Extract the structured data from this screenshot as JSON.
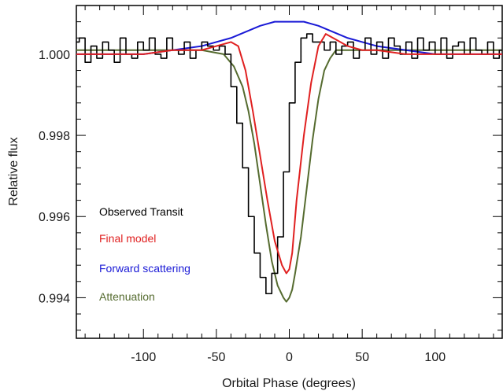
{
  "chart_data": {
    "type": "line",
    "title": "",
    "xlabel": "Orbital Phase (degrees)",
    "ylabel": "Relative flux",
    "xlim": [
      -146,
      146
    ],
    "ylim": [
      0.993,
      1.0012
    ],
    "x_ticks": [
      -100,
      -50,
      0,
      50,
      100
    ],
    "x_tick_labels": [
      "-100",
      "-50",
      "0",
      "50",
      "100"
    ],
    "y_ticks": [
      0.994,
      0.996,
      0.998,
      1.0
    ],
    "y_tick_labels": [
      "0.994",
      "0.996",
      "0.998",
      "1.000"
    ],
    "grid": false,
    "legend_position": "lower-left",
    "series": [
      {
        "name": "Observed Transit",
        "color": "#000000",
        "style": "histogram",
        "x": [
          -146,
          -142,
          -138,
          -134,
          -130,
          -126,
          -122,
          -118,
          -114,
          -110,
          -106,
          -102,
          -98,
          -94,
          -90,
          -86,
          -82,
          -78,
          -74,
          -70,
          -66,
          -62,
          -58,
          -54,
          -50,
          -46,
          -42,
          -38,
          -34,
          -30,
          -26,
          -22,
          -18,
          -14,
          -10,
          -6,
          -2,
          2,
          6,
          10,
          14,
          18,
          22,
          26,
          30,
          34,
          38,
          42,
          46,
          50,
          54,
          58,
          62,
          66,
          70,
          74,
          78,
          82,
          86,
          90,
          94,
          98,
          102,
          106,
          110,
          114,
          118,
          122,
          126,
          130,
          134,
          138,
          142,
          146
        ],
        "y": [
          1.0003,
          1.0004,
          0.9998,
          1.0002,
          0.9999,
          1.0003,
          1.0001,
          0.9998,
          1.0004,
          1.0,
          0.9999,
          1.0003,
          1.0001,
          1.0004,
          1.0,
          0.9999,
          1.0004,
          1.0001,
          1.0,
          1.0003,
          0.9999,
          1.0001,
          1.0003,
          1.0002,
          1.0001,
          1.0002,
          1.0,
          0.9992,
          0.9983,
          0.9972,
          0.996,
          0.9951,
          0.9945,
          0.9941,
          0.9946,
          0.9955,
          0.9971,
          0.9988,
          0.9998,
          1.0004,
          1.0005,
          1.0003,
          1.0003,
          1.0001,
          1.0003,
          1.0,
          1.0002,
          1.0003,
          0.9999,
          1.0001,
          1.0004,
          1.0,
          1.0003,
          0.9999,
          1.0004,
          1.0002,
          1.0,
          1.0003,
          0.9999,
          1.0004,
          1.0001,
          1.0003,
          1.0,
          1.0004,
          0.9999,
          1.0002,
          1.0003,
          1.0,
          1.0004,
          1.0001,
          1.0,
          1.0003,
          0.9999,
          1.0001
        ]
      },
      {
        "name": "Final model",
        "color": "#e02020",
        "x": [
          -146,
          -100,
          -80,
          -60,
          -50,
          -40,
          -35,
          -30,
          -25,
          -20,
          -15,
          -10,
          -5,
          -2,
          0,
          2,
          5,
          10,
          15,
          20,
          25,
          30,
          35,
          40,
          50,
          60,
          80,
          100,
          146
        ],
        "y": [
          1.0,
          1.0,
          1.0001,
          1.0001,
          1.0002,
          1.0003,
          1.0002,
          0.9996,
          0.9986,
          0.9975,
          0.9964,
          0.9954,
          0.9948,
          0.9946,
          0.9947,
          0.9951,
          0.9964,
          0.998,
          0.9993,
          1.0002,
          1.0005,
          1.0004,
          1.0003,
          1.0002,
          1.0001,
          1.0001,
          1.0,
          1.0,
          1.0
        ]
      },
      {
        "name": "Forward scattering",
        "color": "#1a1ad6",
        "x": [
          -146,
          -120,
          -100,
          -80,
          -60,
          -40,
          -20,
          -10,
          0,
          10,
          20,
          40,
          60,
          80,
          100,
          120,
          146
        ],
        "y": [
          1.0,
          1.0,
          1.0,
          1.0001,
          1.0002,
          1.0004,
          1.0007,
          1.0008,
          1.0008,
          1.0008,
          1.0007,
          1.0004,
          1.0002,
          1.0001,
          1.0,
          1.0,
          1.0
        ]
      },
      {
        "name": "Attenuation",
        "color": "#556b2f",
        "x": [
          -146,
          -100,
          -60,
          -45,
          -38,
          -32,
          -28,
          -24,
          -20,
          -16,
          -12,
          -8,
          -4,
          -2,
          0,
          2,
          4,
          8,
          12,
          16,
          20,
          24,
          28,
          32,
          38,
          45,
          60,
          100,
          146
        ],
        "y": [
          1.0001,
          1.0001,
          1.0001,
          1.0,
          0.9997,
          0.9992,
          0.9986,
          0.9978,
          0.9968,
          0.9958,
          0.9949,
          0.9943,
          0.994,
          0.9939,
          0.994,
          0.9942,
          0.9946,
          0.9955,
          0.9967,
          0.9979,
          0.9989,
          0.9996,
          0.9999,
          1.0001,
          1.0001,
          1.0001,
          1.0001,
          1.0001,
          1.0001
        ]
      }
    ]
  }
}
